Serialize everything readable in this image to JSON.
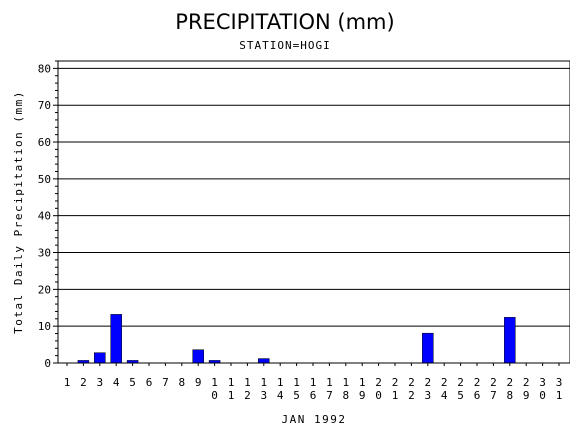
{
  "chart_data": {
    "type": "bar",
    "title": "PRECIPITATION (mm)",
    "subtitle": "STATION=HOGI",
    "xlabel": "JAN 1992",
    "ylabel": "Total Daily Precipitation (mm)",
    "ylim": [
      0,
      82
    ],
    "yticks": [
      0,
      10,
      20,
      30,
      40,
      50,
      60,
      70,
      80
    ],
    "grid": "horizontal",
    "bar_color": "#0000ff",
    "categories": [
      "1",
      "2",
      "3",
      "4",
      "5",
      "6",
      "7",
      "8",
      "9",
      "10",
      "11",
      "12",
      "13",
      "14",
      "15",
      "16",
      "17",
      "18",
      "19",
      "20",
      "21",
      "22",
      "23",
      "24",
      "25",
      "26",
      "27",
      "28",
      "29",
      "30",
      "31"
    ],
    "values": [
      0,
      0.7,
      2.8,
      13.2,
      0.7,
      0,
      0,
      0,
      3.6,
      0.7,
      0,
      0,
      1.2,
      0,
      0,
      0,
      0,
      0,
      0,
      0,
      0,
      0,
      8.1,
      0,
      0,
      0,
      0,
      12.4,
      0,
      0,
      0
    ]
  }
}
